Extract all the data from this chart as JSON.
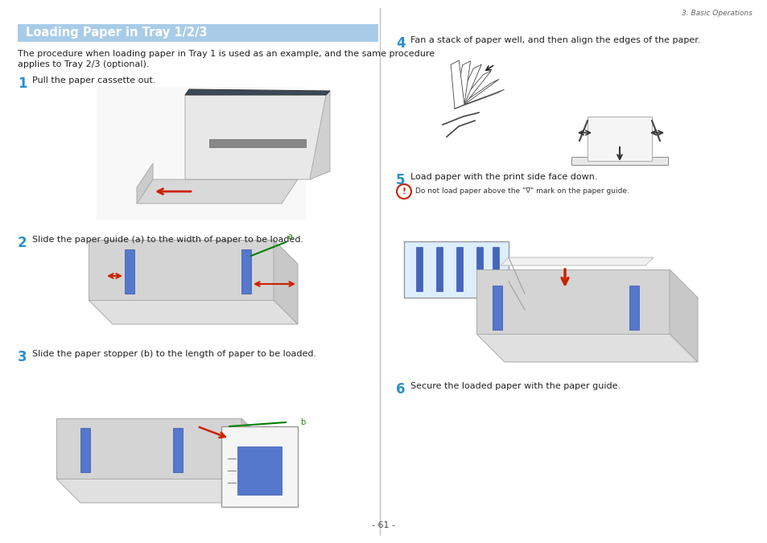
{
  "page_bg": "#ffffff",
  "header_text": "3. Basic Operations",
  "header_color": "#666666",
  "header_fontsize": 6.5,
  "title_box_color": "#a8cce8",
  "title_text": "Loading Paper in Tray 1/2/3",
  "title_text_color": "#ffffff",
  "title_fontsize": 10.5,
  "body_fontsize": 8.0,
  "small_fontsize": 6.5,
  "step_num_color": "#2b8fce",
  "step_num_fontsize": 12,
  "intro_text_line1": "The procedure when loading paper in Tray 1 is used as an example, and the same procedure",
  "intro_text_line2": "applies to Tray 2/3 (optional).",
  "step1_text": "Pull the paper cassette out.",
  "step2_text": "Slide the paper guide (a) to the width of paper to be loaded.",
  "step3_text": "Slide the paper stopper (b) to the length of paper to be loaded.",
  "step4_text": "Fan a stack of paper well, and then align the edges of the paper.",
  "step5_text": "Load paper with the print side face down.",
  "step6_text": "Secure the loaded paper with the paper guide.",
  "caution_text": "Do not load paper above the \"∇\" mark on the paper guide.",
  "page_num": "- 61 -",
  "divider_color": "#bbbbbb",
  "img_bg": "#f0f0f0",
  "img_edge": "#cccccc"
}
